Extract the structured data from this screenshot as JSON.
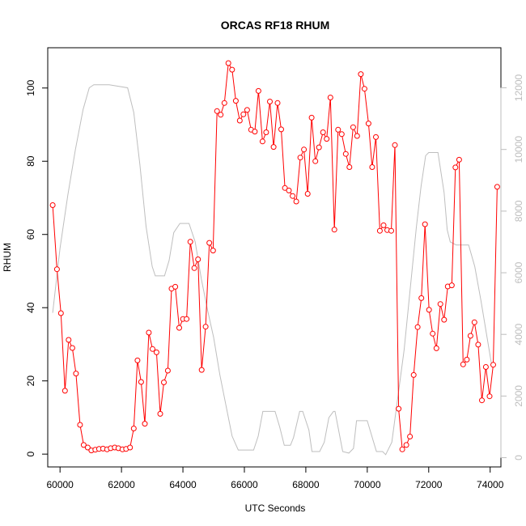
{
  "chart_data": {
    "type": "line",
    "title": "ORCAS RF18 RHUM",
    "xlabel": "UTC Seconds",
    "ylabel": "RHUM",
    "xlim": [
      59600,
      74350
    ],
    "ylim": [
      -3.5,
      111
    ],
    "y2lim": [
      -300,
      13300
    ],
    "x_ticks": [
      60000,
      62000,
      64000,
      66000,
      68000,
      70000,
      72000,
      74000
    ],
    "y_ticks": [
      0,
      20,
      40,
      60,
      80,
      100
    ],
    "y2_ticks": [
      0,
      2000,
      4000,
      6000,
      8000,
      10000,
      12000
    ],
    "colors": {
      "rhum": "#ff0000",
      "altitude": "#bebebe",
      "right_axis": "#bdbdbd"
    },
    "series": [
      {
        "color": "#ff0000",
        "marker": "open-circle",
        "points": [
          [
            59760,
            68
          ],
          [
            59900,
            50.5
          ],
          [
            60030,
            38.5
          ],
          [
            60160,
            17.3
          ],
          [
            60280,
            31.2
          ],
          [
            60400,
            29
          ],
          [
            60520,
            22
          ],
          [
            60650,
            8
          ],
          [
            60770,
            2.5
          ],
          [
            60900,
            1.8
          ],
          [
            61020,
            1
          ],
          [
            61150,
            1.2
          ],
          [
            61270,
            1.4
          ],
          [
            61400,
            1.5
          ],
          [
            61530,
            1.3
          ],
          [
            61650,
            1.6
          ],
          [
            61780,
            1.8
          ],
          [
            61900,
            1.6
          ],
          [
            62030,
            1.3
          ],
          [
            62150,
            1.4
          ],
          [
            62280,
            1.8
          ],
          [
            62400,
            7
          ],
          [
            62520,
            25.6
          ],
          [
            62640,
            19.7
          ],
          [
            62760,
            8.3
          ],
          [
            62890,
            33.2
          ],
          [
            63010,
            28.7
          ],
          [
            63140,
            27.8
          ],
          [
            63260,
            11
          ],
          [
            63380,
            19.6
          ],
          [
            63510,
            22.8
          ],
          [
            63630,
            45.2
          ],
          [
            63750,
            45.7
          ],
          [
            63880,
            34.5
          ],
          [
            64000,
            36.9
          ],
          [
            64120,
            36.9
          ],
          [
            64240,
            58
          ],
          [
            64370,
            50.8
          ],
          [
            64490,
            53.2
          ],
          [
            64610,
            23
          ],
          [
            64740,
            34.8
          ],
          [
            64860,
            57.7
          ],
          [
            64980,
            55.6
          ],
          [
            65110,
            93.7
          ],
          [
            65230,
            92.7
          ],
          [
            65350,
            95.9
          ],
          [
            65480,
            106.8
          ],
          [
            65600,
            105
          ],
          [
            65720,
            96.5
          ],
          [
            65850,
            91.1
          ],
          [
            65970,
            92.8
          ],
          [
            66090,
            94
          ],
          [
            66220,
            88.6
          ],
          [
            66340,
            88.1
          ],
          [
            66460,
            99.2
          ],
          [
            66590,
            85.4
          ],
          [
            66710,
            87.9
          ],
          [
            66830,
            96.3
          ],
          [
            66950,
            83.9
          ],
          [
            67080,
            95.9
          ],
          [
            67200,
            88.7
          ],
          [
            67320,
            72.7
          ],
          [
            67450,
            72
          ],
          [
            67570,
            70.5
          ],
          [
            67690,
            69
          ],
          [
            67820,
            81
          ],
          [
            67940,
            83.2
          ],
          [
            68060,
            71.1
          ],
          [
            68190,
            91.9
          ],
          [
            68310,
            80
          ],
          [
            68430,
            83.8
          ],
          [
            68560,
            87.9
          ],
          [
            68680,
            86.1
          ],
          [
            68800,
            97.4
          ],
          [
            68930,
            61.3
          ],
          [
            69050,
            88.6
          ],
          [
            69170,
            87.4
          ],
          [
            69300,
            82
          ],
          [
            69420,
            78.4
          ],
          [
            69540,
            89.3
          ],
          [
            69670,
            86.9
          ],
          [
            69790,
            103.8
          ],
          [
            69910,
            99.8
          ],
          [
            70040,
            90.3
          ],
          [
            70160,
            78.4
          ],
          [
            70280,
            86.6
          ],
          [
            70410,
            61
          ],
          [
            70530,
            62.5
          ],
          [
            70650,
            61.2
          ],
          [
            70780,
            61
          ],
          [
            70900,
            84.4
          ],
          [
            71020,
            12.4
          ],
          [
            71140,
            1.3
          ],
          [
            71270,
            2.5
          ],
          [
            71390,
            4.8
          ],
          [
            71510,
            21.6
          ],
          [
            71640,
            34.7
          ],
          [
            71760,
            42.6
          ],
          [
            71880,
            62.8
          ],
          [
            72010,
            39.4
          ],
          [
            72130,
            32.9
          ],
          [
            72250,
            28.9
          ],
          [
            72380,
            41
          ],
          [
            72500,
            36.7
          ],
          [
            72620,
            45.8
          ],
          [
            72750,
            46.1
          ],
          [
            72870,
            78.3
          ],
          [
            72990,
            80.4
          ],
          [
            73120,
            24.5
          ],
          [
            73240,
            25.8
          ],
          [
            73360,
            32.3
          ],
          [
            73490,
            36
          ],
          [
            73610,
            29.9
          ],
          [
            73730,
            14.7
          ],
          [
            73860,
            23.8
          ],
          [
            73980,
            15.8
          ],
          [
            74100,
            24.4
          ],
          [
            74230,
            73
          ]
        ]
      },
      {
        "color": "#bebebe",
        "axis": "right",
        "points": [
          [
            59760,
            4700
          ],
          [
            60000,
            6800
          ],
          [
            60250,
            8500
          ],
          [
            60500,
            10000
          ],
          [
            60750,
            11300
          ],
          [
            60950,
            12000
          ],
          [
            61100,
            12100
          ],
          [
            61600,
            12100
          ],
          [
            62200,
            12000
          ],
          [
            62400,
            11200
          ],
          [
            62600,
            9500
          ],
          [
            62800,
            7500
          ],
          [
            63000,
            6200
          ],
          [
            63100,
            5900
          ],
          [
            63400,
            5900
          ],
          [
            63550,
            6400
          ],
          [
            63700,
            7300
          ],
          [
            63900,
            7600
          ],
          [
            64200,
            7600
          ],
          [
            64400,
            7000
          ],
          [
            64600,
            5800
          ],
          [
            64800,
            4800
          ],
          [
            65000,
            3900
          ],
          [
            65200,
            2700
          ],
          [
            65400,
            1700
          ],
          [
            65600,
            700
          ],
          [
            65800,
            250
          ],
          [
            66000,
            250
          ],
          [
            66300,
            250
          ],
          [
            66450,
            700
          ],
          [
            66600,
            1500
          ],
          [
            66700,
            1500
          ],
          [
            67000,
            1500
          ],
          [
            67150,
            1000
          ],
          [
            67300,
            400
          ],
          [
            67500,
            400
          ],
          [
            67600,
            650
          ],
          [
            67800,
            1500
          ],
          [
            67900,
            1500
          ],
          [
            68100,
            900
          ],
          [
            68200,
            200
          ],
          [
            68450,
            200
          ],
          [
            68600,
            500
          ],
          [
            68750,
            1300
          ],
          [
            68900,
            1500
          ],
          [
            68950,
            1500
          ],
          [
            69200,
            200
          ],
          [
            69400,
            150
          ],
          [
            69550,
            300
          ],
          [
            69650,
            1200
          ],
          [
            69800,
            1200
          ],
          [
            70000,
            1200
          ],
          [
            70300,
            200
          ],
          [
            70500,
            200
          ],
          [
            70600,
            100
          ],
          [
            70800,
            500
          ],
          [
            71000,
            2000
          ],
          [
            71200,
            3500
          ],
          [
            71400,
            5500
          ],
          [
            71600,
            7500
          ],
          [
            71750,
            8800
          ],
          [
            71900,
            9800
          ],
          [
            72000,
            9900
          ],
          [
            72300,
            9900
          ],
          [
            72500,
            8600
          ],
          [
            72600,
            7400
          ],
          [
            72700,
            7000
          ],
          [
            72900,
            6900
          ],
          [
            73300,
            6900
          ],
          [
            73500,
            6200
          ],
          [
            73700,
            5100
          ],
          [
            73900,
            3900
          ],
          [
            74050,
            3000
          ]
        ]
      }
    ]
  }
}
